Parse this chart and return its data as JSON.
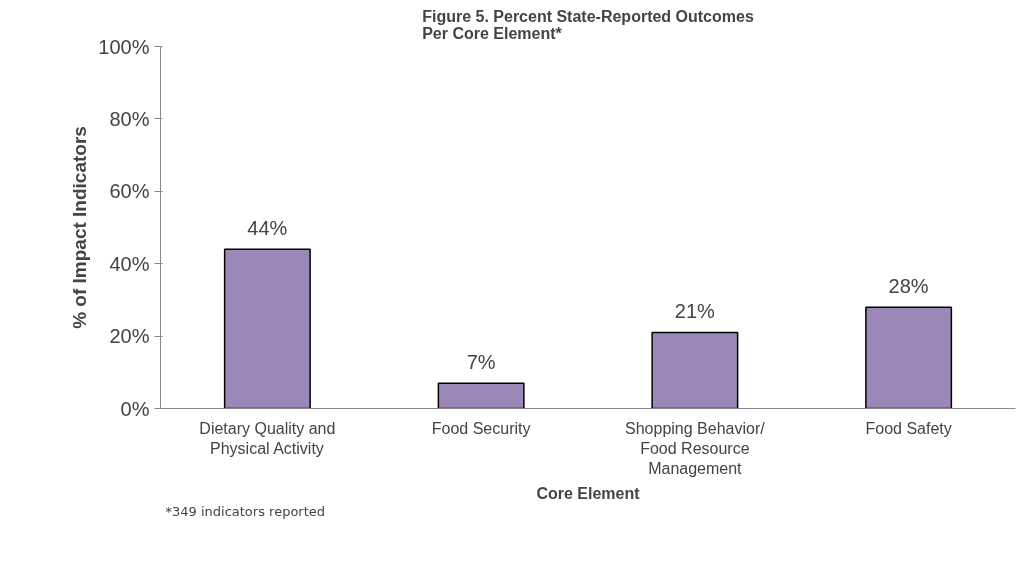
{
  "chart_data": {
    "type": "bar",
    "title": "Figure 5. Percent State-Reported Outcomes Per Core Element*",
    "xlabel": "Core Element",
    "ylabel": "% of Impact Indicators",
    "categories": [
      "Dietary Quality and Physical Activity",
      "Food Security",
      "Shopping Behavior/ Food Resource Management",
      "Food Safety"
    ],
    "values": [
      44,
      7,
      21,
      28
    ],
    "color": "#9b88b8",
    "value_labels": [
      "44%",
      "7%",
      "21%",
      "28%"
    ],
    "ylim": [
      0,
      100
    ],
    "yticks": [
      {
        "value": 0,
        "label": "0%"
      },
      {
        "value": 20,
        "label": "20%"
      },
      {
        "value": 40,
        "label": "40%"
      },
      {
        "value": 60,
        "label": "60%"
      },
      {
        "value": 80,
        "label": "80%"
      },
      {
        "value": 100,
        "label": "100%"
      }
    ],
    "grid": false,
    "annotations": [
      "*349 indicators reported"
    ]
  }
}
